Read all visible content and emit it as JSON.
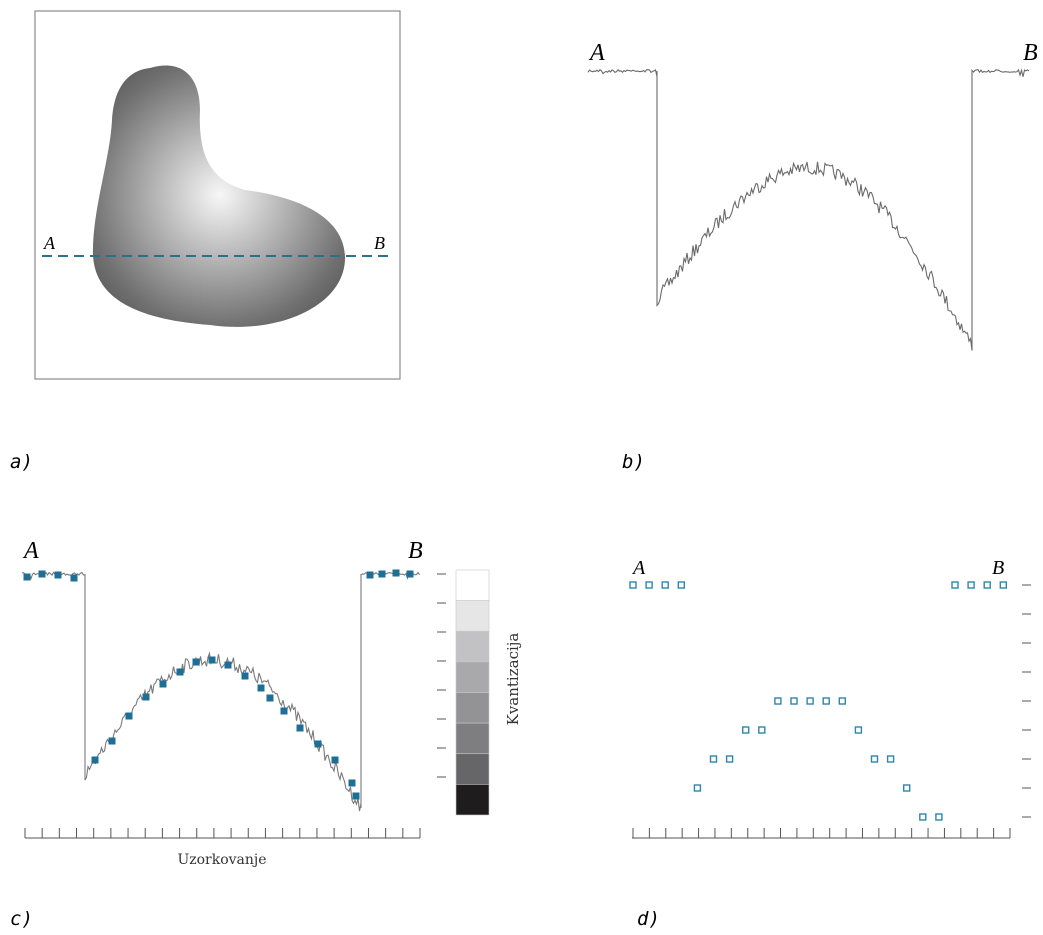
{
  "panel_a": {
    "caption": "a)",
    "label_start": "A",
    "label_end": "B"
  },
  "panel_b": {
    "caption": "b)",
    "label_start": "A",
    "label_end": "B"
  },
  "panel_c": {
    "caption": "c)",
    "label_start": "A",
    "label_end": "B",
    "xlabel": "Uzorkovanje",
    "scale_label": "Kvantizacija",
    "scale_colors": [
      "#ffffff",
      "#e6e6e7",
      "#c2c2c4",
      "#a9a9ab",
      "#939395",
      "#7e7e80",
      "#666668",
      "#1e1c1d"
    ],
    "sample_color": "#1d6f96"
  },
  "panel_d": {
    "caption": "d)",
    "label_start": "A",
    "label_end": "B",
    "sample_color": "#2d86ad",
    "chart_data": {
      "type": "scatter",
      "x": [
        1,
        2,
        3,
        4,
        5,
        6,
        7,
        8,
        9,
        10,
        11,
        12,
        13,
        14,
        15,
        16,
        17,
        18,
        19,
        20,
        21,
        22,
        23,
        24
      ],
      "y": [
        8,
        8,
        8,
        8,
        1,
        2,
        2,
        3,
        3,
        4,
        4,
        4,
        4,
        4,
        3,
        2,
        2,
        1,
        0,
        0,
        8,
        8,
        8,
        8
      ],
      "ylim": [
        0,
        8
      ]
    }
  }
}
